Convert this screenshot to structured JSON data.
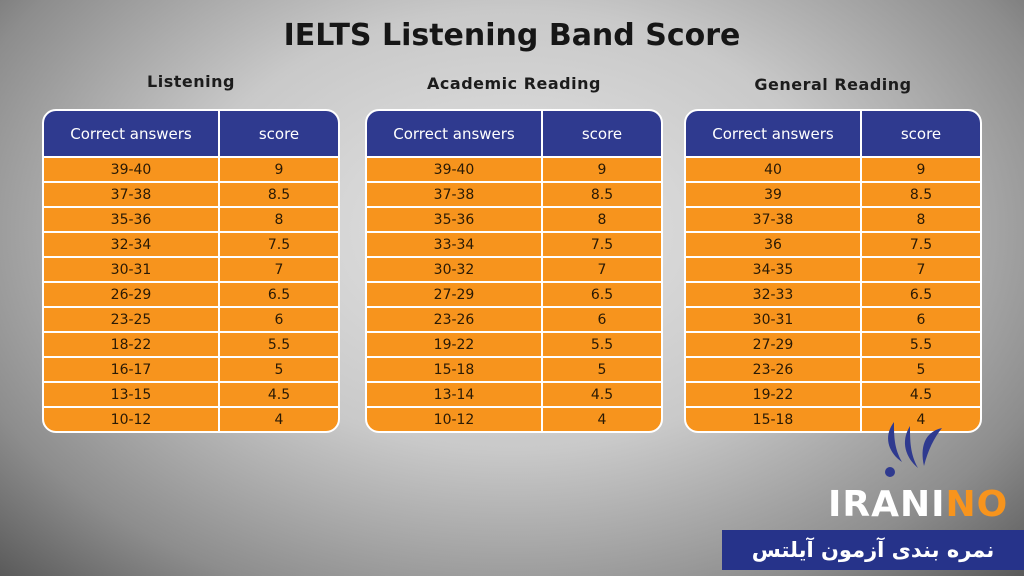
{
  "title": "IELTS Listening Band Score",
  "tables": [
    {
      "caption": "Listening",
      "headers": [
        "Correct answers",
        "score"
      ],
      "rows": [
        [
          "39-40",
          "9"
        ],
        [
          "37-38",
          "8.5"
        ],
        [
          "35-36",
          "8"
        ],
        [
          "32-34",
          "7.5"
        ],
        [
          "30-31",
          "7"
        ],
        [
          "26-29",
          "6.5"
        ],
        [
          "23-25",
          "6"
        ],
        [
          "18-22",
          "5.5"
        ],
        [
          "16-17",
          "5"
        ],
        [
          "13-15",
          "4.5"
        ],
        [
          "10-12",
          "4"
        ]
      ]
    },
    {
      "caption": "Academic Reading",
      "headers": [
        "Correct answers",
        "score"
      ],
      "rows": [
        [
          "39-40",
          "9"
        ],
        [
          "37-38",
          "8.5"
        ],
        [
          "35-36",
          "8"
        ],
        [
          "33-34",
          "7.5"
        ],
        [
          "30-32",
          "7"
        ],
        [
          "27-29",
          "6.5"
        ],
        [
          "23-26",
          "6"
        ],
        [
          "19-22",
          "5.5"
        ],
        [
          "15-18",
          "5"
        ],
        [
          "13-14",
          "4.5"
        ],
        [
          "10-12",
          "4"
        ]
      ]
    },
    {
      "caption": "General Reading",
      "headers": [
        "Correct answers",
        "score"
      ],
      "rows": [
        [
          "40",
          "9"
        ],
        [
          "39",
          "8.5"
        ],
        [
          "37-38",
          "8"
        ],
        [
          "36",
          "7.5"
        ],
        [
          "34-35",
          "7"
        ],
        [
          "32-33",
          "6.5"
        ],
        [
          "30-31",
          "6"
        ],
        [
          "27-29",
          "5.5"
        ],
        [
          "23-26",
          "5"
        ],
        [
          "19-22",
          "4.5"
        ],
        [
          "15-18",
          "4"
        ]
      ]
    }
  ],
  "logo": {
    "parts": [
      "IRANI",
      "NO"
    ]
  },
  "banner": "نمره بندی آزمون آیلتس"
}
